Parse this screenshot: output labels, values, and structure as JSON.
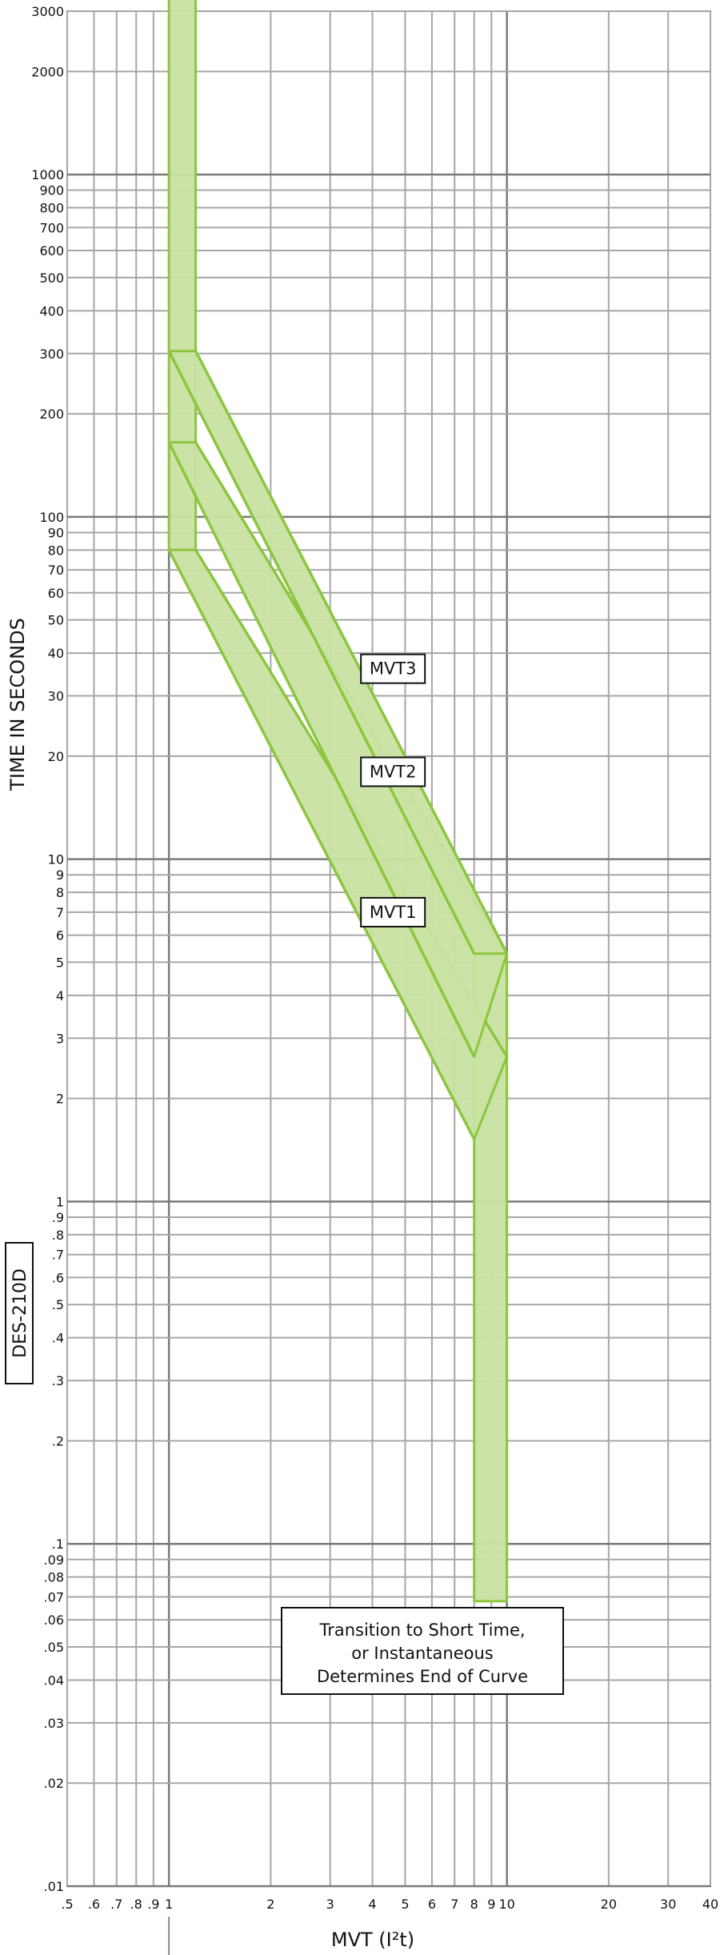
{
  "chart_data": {
    "type": "line",
    "title": "",
    "xlabel": "MVT (I²t)",
    "ylabel": "TIME IN SECONDS",
    "x_scale": "log",
    "y_scale": "log",
    "xlim": [
      0.5,
      40
    ],
    "ylim": [
      0.01,
      3000
    ],
    "grid": true,
    "x_ticks": [
      {
        "value": 0.5,
        "label": ".5"
      },
      {
        "value": 0.6,
        "label": ".6"
      },
      {
        "value": 0.7,
        "label": ".7"
      },
      {
        "value": 0.8,
        "label": ".8"
      },
      {
        "value": 0.9,
        "label": ".9"
      },
      {
        "value": 1,
        "label": "1"
      },
      {
        "value": 2,
        "label": "2"
      },
      {
        "value": 3,
        "label": "3"
      },
      {
        "value": 4,
        "label": "4"
      },
      {
        "value": 5,
        "label": "5"
      },
      {
        "value": 6,
        "label": "6"
      },
      {
        "value": 7,
        "label": "7"
      },
      {
        "value": 8,
        "label": "8"
      },
      {
        "value": 9,
        "label": "9"
      },
      {
        "value": 10,
        "label": "10"
      },
      {
        "value": 20,
        "label": "20"
      },
      {
        "value": 30,
        "label": "30"
      },
      {
        "value": 40,
        "label": "40"
      }
    ],
    "y_ticks": [
      {
        "value": 0.01,
        "label": ".01"
      },
      {
        "value": 0.02,
        "label": ".02"
      },
      {
        "value": 0.03,
        "label": ".03"
      },
      {
        "value": 0.04,
        "label": ".04"
      },
      {
        "value": 0.05,
        "label": ".05"
      },
      {
        "value": 0.06,
        "label": ".06"
      },
      {
        "value": 0.07,
        "label": ".07"
      },
      {
        "value": 0.08,
        "label": ".08"
      },
      {
        "value": 0.09,
        "label": ".09"
      },
      {
        "value": 0.1,
        "label": ".1"
      },
      {
        "value": 0.2,
        "label": ".2"
      },
      {
        "value": 0.3,
        "label": ".3"
      },
      {
        "value": 0.4,
        "label": ".4"
      },
      {
        "value": 0.5,
        "label": ".5"
      },
      {
        "value": 0.6,
        "label": ".6"
      },
      {
        "value": 0.7,
        "label": ".7"
      },
      {
        "value": 0.8,
        "label": ".8"
      },
      {
        "value": 0.9,
        "label": ".9"
      },
      {
        "value": 1,
        "label": "1"
      },
      {
        "value": 2,
        "label": "2"
      },
      {
        "value": 3,
        "label": "3"
      },
      {
        "value": 4,
        "label": "4"
      },
      {
        "value": 5,
        "label": "5"
      },
      {
        "value": 6,
        "label": "6"
      },
      {
        "value": 7,
        "label": "7"
      },
      {
        "value": 8,
        "label": "8"
      },
      {
        "value": 9,
        "label": "9"
      },
      {
        "value": 10,
        "label": "10"
      },
      {
        "value": 20,
        "label": "20"
      },
      {
        "value": 30,
        "label": "30"
      },
      {
        "value": 40,
        "label": "40"
      },
      {
        "value": 50,
        "label": "50"
      },
      {
        "value": 60,
        "label": "60"
      },
      {
        "value": 70,
        "label": "70"
      },
      {
        "value": 80,
        "label": "80"
      },
      {
        "value": 90,
        "label": "90"
      },
      {
        "value": 100,
        "label": "100"
      },
      {
        "value": 200,
        "label": "200"
      },
      {
        "value": 300,
        "label": "300"
      },
      {
        "value": 400,
        "label": "400"
      },
      {
        "value": 500,
        "label": "500"
      },
      {
        "value": 600,
        "label": "600"
      },
      {
        "value": 700,
        "label": "700"
      },
      {
        "value": 800,
        "label": "800"
      },
      {
        "value": 900,
        "label": "900"
      },
      {
        "value": 1000,
        "label": "1000"
      },
      {
        "value": 2000,
        "label": "2000"
      },
      {
        "value": 3000,
        "label": "3000"
      }
    ],
    "bands": [
      {
        "name": "MVT1",
        "label_at": {
          "x": 4.6,
          "y": 7
        },
        "upper_edge": [
          [
            1.2,
            80
          ],
          [
            10,
            2.65
          ]
        ],
        "lower_edge": [
          [
            1,
            80
          ],
          [
            8,
            1.52
          ]
        ]
      },
      {
        "name": "MVT2",
        "label_at": {
          "x": 4.6,
          "y": 18
        },
        "upper_edge": [
          [
            1.2,
            165
          ],
          [
            10,
            5.3
          ]
        ],
        "lower_edge": [
          [
            1,
            165
          ],
          [
            8,
            2.65
          ]
        ]
      },
      {
        "name": "MVT3",
        "label_at": {
          "x": 4.6,
          "y": 36
        },
        "upper_edge": [
          [
            1.2,
            305
          ],
          [
            10,
            5.3
          ]
        ],
        "lower_edge": [
          [
            1,
            305
          ],
          [
            8,
            5.3
          ]
        ]
      }
    ],
    "long_time_band": {
      "x_min": 1,
      "x_max": 1.2,
      "y_min": 80,
      "y_max": 3300
    },
    "short_time_band": {
      "x_min": 8,
      "x_max": 10,
      "y_min": 0.068,
      "y_max": 5.3
    },
    "colors": {
      "band_fill": "#c9e2a2",
      "band_stroke": "#8cc63f",
      "grid": "#a6a6a6",
      "grid_major": "#7a7a7a"
    }
  },
  "annotation": {
    "lines": [
      "Transition to Short Time,",
      "or Instantaneous",
      "Determines End of Curve"
    ],
    "anchor": {
      "x": 3.5,
      "y": 0.05
    }
  },
  "side_label": "DES-210D"
}
